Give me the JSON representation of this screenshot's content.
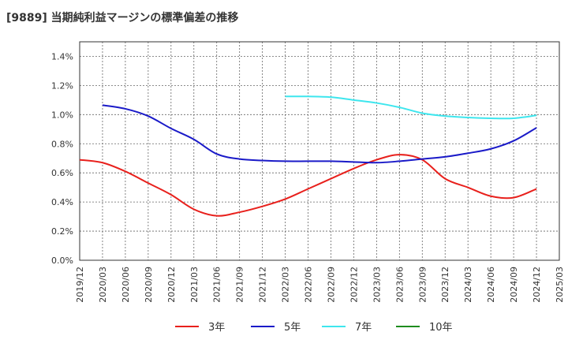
{
  "colors": {
    "3年": "#e8201c",
    "5年": "#1a1ac8",
    "7年": "#3ee6ee",
    "10年": "#1e8c1e"
  },
  "chart_data": {
    "type": "line",
    "title": "[9889]  当期純利益マージンの標準偏差の推移",
    "xlabel": "",
    "ylabel": "",
    "grid": true,
    "legend_position": "bottom",
    "ylim": [
      0.0,
      1.5
    ],
    "y_ticks": [
      "0.0%",
      "0.2%",
      "0.4%",
      "0.6%",
      "0.8%",
      "1.0%",
      "1.2%",
      "1.4%"
    ],
    "x_ticks": [
      "2019/12",
      "2020/03",
      "2020/06",
      "2020/09",
      "2020/12",
      "2021/03",
      "2021/06",
      "2021/09",
      "2021/12",
      "2022/03",
      "2022/06",
      "2022/09",
      "2022/12",
      "2023/03",
      "2023/06",
      "2023/09",
      "2023/12",
      "2024/03",
      "2024/06",
      "2024/09",
      "2024/12",
      "2025/03"
    ],
    "series": [
      {
        "name": "3年",
        "x": [
          "2019/12",
          "2020/03",
          "2020/06",
          "2020/09",
          "2020/12",
          "2021/03",
          "2021/06",
          "2021/09",
          "2021/12",
          "2022/03",
          "2022/06",
          "2022/09",
          "2022/12",
          "2023/03",
          "2023/06",
          "2023/09",
          "2023/12",
          "2024/03",
          "2024/06",
          "2024/09",
          "2024/12"
        ],
        "values": [
          0.69,
          0.67,
          0.61,
          0.53,
          0.45,
          0.35,
          0.305,
          0.33,
          0.37,
          0.42,
          0.49,
          0.56,
          0.63,
          0.69,
          0.725,
          0.69,
          0.56,
          0.5,
          0.44,
          0.43,
          0.49
        ]
      },
      {
        "name": "5年",
        "x": [
          "2020/03",
          "2020/06",
          "2020/09",
          "2020/12",
          "2021/03",
          "2021/06",
          "2021/09",
          "2021/12",
          "2022/03",
          "2022/06",
          "2022/09",
          "2022/12",
          "2023/03",
          "2023/06",
          "2023/09",
          "2023/12",
          "2024/03",
          "2024/06",
          "2024/09",
          "2024/12"
        ],
        "values": [
          1.065,
          1.04,
          0.99,
          0.905,
          0.83,
          0.73,
          0.695,
          0.685,
          0.68,
          0.68,
          0.68,
          0.675,
          0.67,
          0.68,
          0.695,
          0.71,
          0.735,
          0.765,
          0.82,
          0.91
        ]
      },
      {
        "name": "7年",
        "x": [
          "2022/03",
          "2022/06",
          "2022/09",
          "2022/12",
          "2023/03",
          "2023/06",
          "2023/09",
          "2023/12",
          "2024/03",
          "2024/06",
          "2024/09",
          "2024/12"
        ],
        "values": [
          1.125,
          1.125,
          1.12,
          1.1,
          1.08,
          1.05,
          1.01,
          0.99,
          0.98,
          0.975,
          0.975,
          0.995
        ]
      },
      {
        "name": "10年",
        "x": [],
        "values": []
      }
    ]
  }
}
